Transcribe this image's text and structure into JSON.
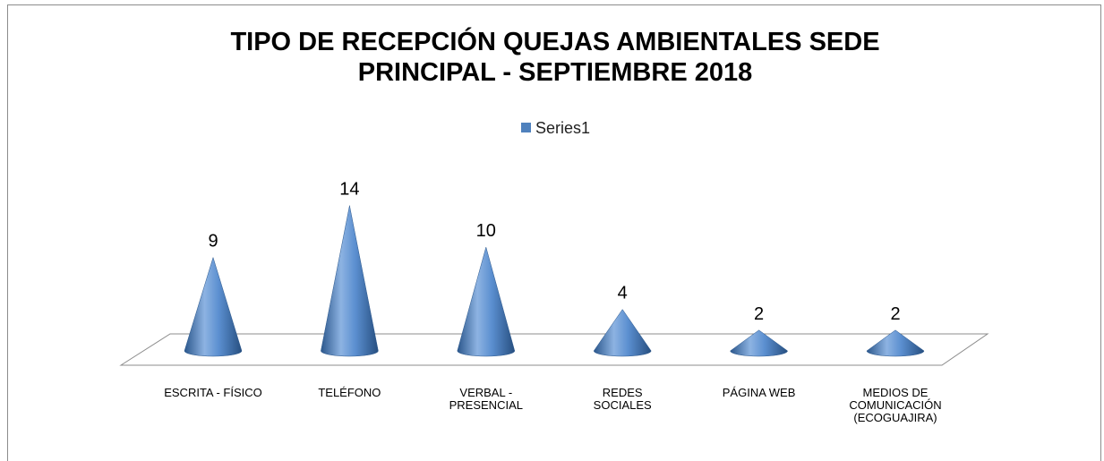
{
  "chart_data": {
    "type": "cone",
    "title": "TIPO DE RECEPCIÓN QUEJAS AMBIENTALES SEDE PRINCIPAL - SEPTIEMBRE 2018",
    "categories": [
      "ESCRITA - FÍSICO",
      "TELÉFONO",
      "VERBAL - PRESENCIAL",
      "REDES SOCIALES",
      "PÁGINA WEB",
      "MEDIOS DE COMUNICACIÓN (ECOGUAJIRA)"
    ],
    "series": [
      {
        "name": "Series1",
        "color": "#4f81bd",
        "values": [
          9,
          14,
          10,
          4,
          2,
          2
        ]
      }
    ],
    "legend": "top"
  }
}
